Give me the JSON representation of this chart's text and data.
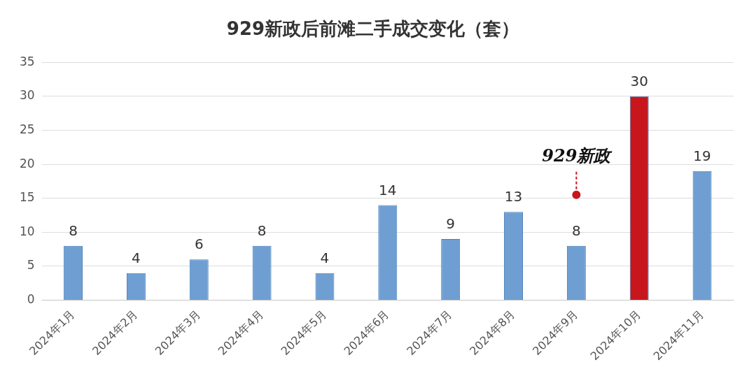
{
  "chart_data": {
    "type": "bar",
    "title": "929新政后前滩二手成交变化（套）",
    "categories": [
      "2024年1月",
      "2024年2月",
      "2024年3月",
      "2024年4月",
      "2024年5月",
      "2024年6月",
      "2024年7月",
      "2024年8月",
      "2024年9月",
      "2024年10月",
      "2024年11月"
    ],
    "values": [
      8,
      4,
      6,
      8,
      4,
      14,
      9,
      13,
      8,
      30,
      19
    ],
    "colors": [
      "#6f9fd2",
      "#6f9fd2",
      "#6f9fd2",
      "#6f9fd2",
      "#6f9fd2",
      "#6f9fd2",
      "#6f9fd2",
      "#6f9fd2",
      "#6f9fd2",
      "#c8161d",
      "#6f9fd2"
    ],
    "ylim": [
      0,
      35
    ],
    "yticks": [
      0,
      5,
      10,
      15,
      20,
      25,
      30,
      35
    ],
    "grid": "y",
    "data_labels": true,
    "legend": false,
    "annotations": [
      {
        "text": "929新政",
        "x": "2024年9月",
        "y": 15.5
      }
    ]
  }
}
